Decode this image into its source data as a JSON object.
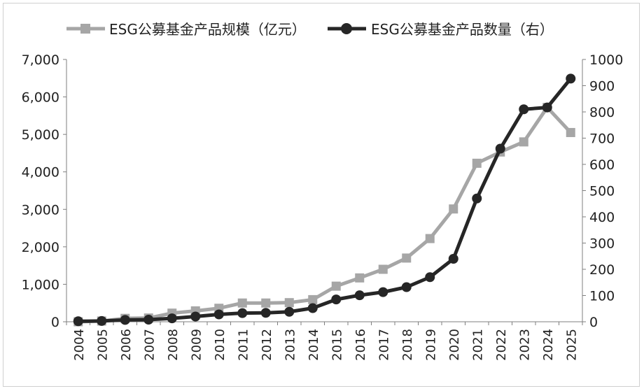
{
  "chart_data": {
    "type": "line",
    "title": "",
    "x": [
      "2004",
      "2005",
      "2006",
      "2007",
      "2008",
      "2009",
      "2010",
      "2011",
      "2012",
      "2013",
      "2014",
      "2015",
      "2016",
      "2017",
      "2018",
      "2019",
      "2020",
      "2021",
      "2022",
      "2023",
      "2024",
      "2025"
    ],
    "series": [
      {
        "name": "ESG公募基金产品规模（亿元）",
        "axis": "left",
        "color": "#a6a6a6",
        "marker": "square",
        "values": [
          0,
          20,
          90,
          100,
          230,
          290,
          360,
          500,
          500,
          510,
          590,
          950,
          1170,
          1400,
          1700,
          2220,
          3010,
          4230,
          4530,
          4800,
          5720,
          5050
        ]
      },
      {
        "name": "ESG公募基金产品数量（右）",
        "axis": "right",
        "color": "#262626",
        "marker": "circle",
        "values": [
          2,
          3,
          7,
          8,
          13,
          20,
          28,
          33,
          34,
          38,
          52,
          85,
          101,
          113,
          132,
          170,
          240,
          470,
          660,
          810,
          817,
          927
        ]
      }
    ],
    "y_left": {
      "range": [
        0,
        7000
      ],
      "ticks": [
        0,
        1000,
        2000,
        3000,
        4000,
        5000,
        6000,
        7000
      ],
      "tick_labels": [
        "0",
        "1,000",
        "2,000",
        "3,000",
        "4,000",
        "5,000",
        "6,000",
        "7,000"
      ]
    },
    "y_right": {
      "range": [
        0,
        1000
      ],
      "ticks": [
        0,
        100,
        200,
        300,
        400,
        500,
        600,
        700,
        800,
        900,
        1000
      ],
      "tick_labels": [
        "0",
        "100",
        "200",
        "300",
        "400",
        "500",
        "600",
        "700",
        "800",
        "900",
        "1000"
      ]
    },
    "grid": false,
    "legend_position": "top"
  }
}
